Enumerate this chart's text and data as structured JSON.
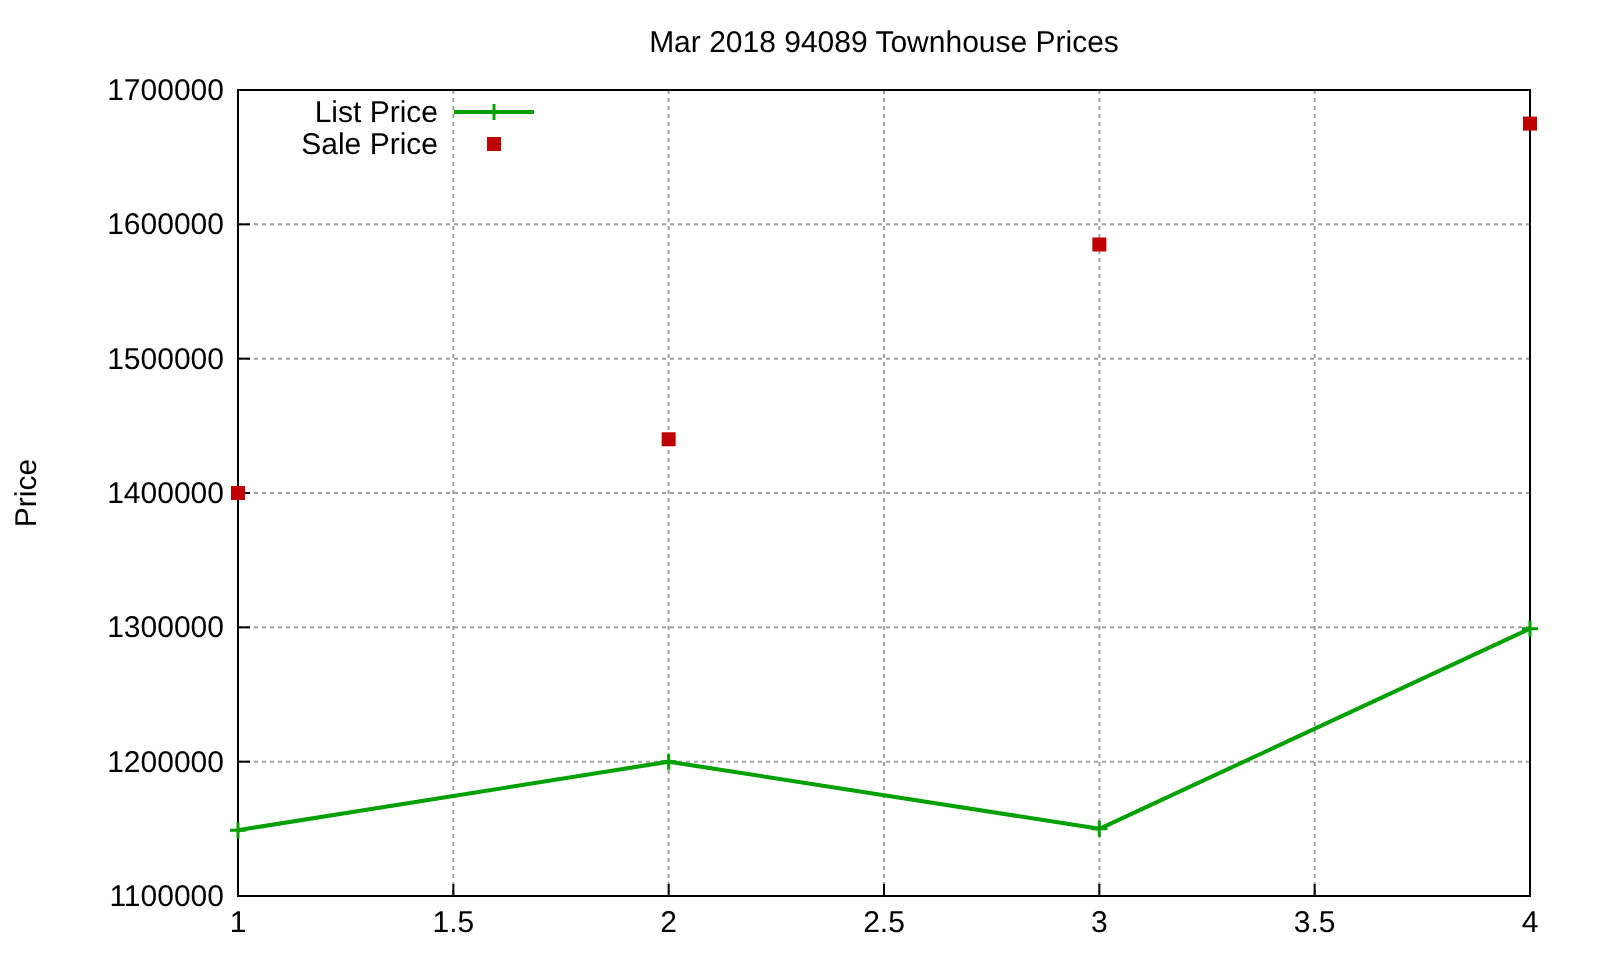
{
  "chart_data": {
    "type": "line",
    "title": "Mar 2018 94089 Townhouse Prices",
    "ylabel": "Price",
    "x": [
      1,
      2,
      3,
      4
    ],
    "series": [
      {
        "name": "List Price",
        "type": "line",
        "color": "#00a000",
        "marker": "cross",
        "values": [
          1149000,
          1200000,
          1150000,
          1299000
        ]
      },
      {
        "name": "Sale Price",
        "type": "scatter",
        "color": "#c00000",
        "marker": "square",
        "values": [
          1400000,
          1440000,
          1585000,
          1675000
        ]
      }
    ],
    "xlim": [
      1,
      4
    ],
    "xticks": [
      1,
      1.5,
      2,
      2.5,
      3,
      3.5,
      4
    ],
    "ylim": [
      1100000,
      1700000
    ],
    "yticks": [
      1100000,
      1200000,
      1300000,
      1400000,
      1500000,
      1600000,
      1700000
    ],
    "grid": true,
    "legend": "top left"
  }
}
